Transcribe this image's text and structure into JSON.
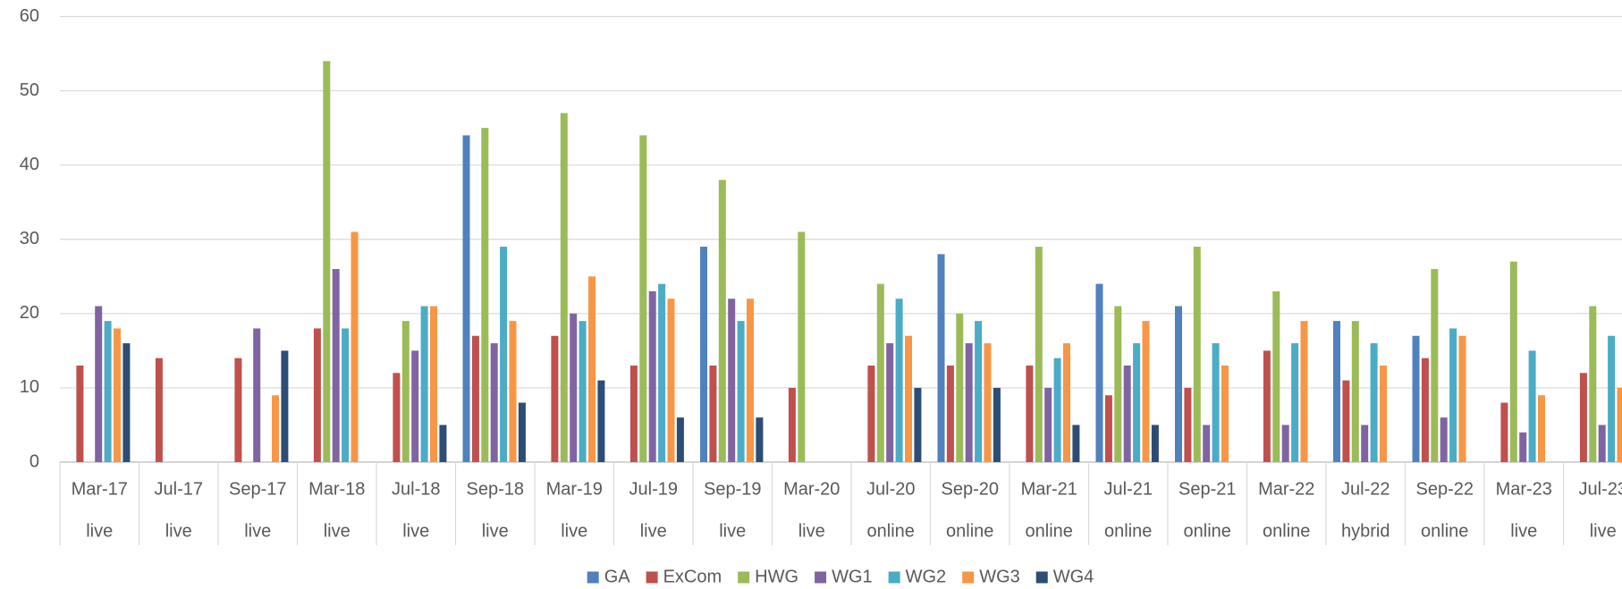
{
  "chart_data": {
    "type": "bar",
    "categories": [
      "Mar-17",
      "Jul-17",
      "Sep-17",
      "Mar-18",
      "Jul-18",
      "Sep-18",
      "Mar-19",
      "Jul-19",
      "Sep-19",
      "Mar-20",
      "Jul-20",
      "Sep-20",
      "Mar-21",
      "Jul-21",
      "Sep-21",
      "Mar-22",
      "Jul-22",
      "Sep-22",
      "Mar-23",
      "Jul-23"
    ],
    "category_modes": [
      "live",
      "live",
      "live",
      "live",
      "live",
      "live",
      "live",
      "live",
      "live",
      "live",
      "online",
      "online",
      "online",
      "online",
      "online",
      "online",
      "hybrid",
      "online",
      "live",
      "live"
    ],
    "series": [
      {
        "name": "GA",
        "color": "#4f81bd",
        "values": [
          null,
          null,
          null,
          null,
          null,
          44,
          null,
          null,
          29,
          null,
          null,
          28,
          null,
          24,
          21,
          null,
          19,
          17,
          null,
          null
        ]
      },
      {
        "name": "ExCom",
        "color": "#c0504d",
        "values": [
          13,
          14,
          14,
          18,
          12,
          17,
          17,
          13,
          13,
          10,
          13,
          13,
          13,
          9,
          10,
          15,
          11,
          14,
          8,
          12
        ]
      },
      {
        "name": "HWG",
        "color": "#9bbb59",
        "values": [
          null,
          null,
          null,
          54,
          19,
          45,
          47,
          44,
          38,
          31,
          24,
          20,
          29,
          21,
          29,
          23,
          19,
          26,
          27,
          21
        ]
      },
      {
        "name": "WG1",
        "color": "#8064a2",
        "values": [
          21,
          null,
          18,
          26,
          15,
          16,
          20,
          23,
          22,
          null,
          16,
          16,
          10,
          13,
          5,
          5,
          5,
          6,
          4,
          5
        ]
      },
      {
        "name": "WG2",
        "color": "#4bacc6",
        "values": [
          19,
          null,
          null,
          18,
          21,
          29,
          19,
          24,
          19,
          null,
          22,
          19,
          14,
          16,
          16,
          16,
          16,
          18,
          15,
          17
        ]
      },
      {
        "name": "WG3",
        "color": "#f79646",
        "values": [
          18,
          null,
          9,
          31,
          21,
          19,
          25,
          22,
          22,
          null,
          17,
          16,
          16,
          19,
          13,
          19,
          13,
          17,
          9,
          10
        ]
      },
      {
        "name": "WG4",
        "color": "#2c4d75",
        "values": [
          16,
          null,
          15,
          null,
          5,
          8,
          11,
          6,
          6,
          null,
          10,
          10,
          5,
          5,
          null,
          null,
          null,
          null,
          null,
          null
        ]
      }
    ],
    "ylim": [
      0,
      60
    ],
    "yticks": [
      0,
      10,
      20,
      30,
      40,
      50,
      60
    ],
    "grid": true,
    "legend": "bottom"
  }
}
